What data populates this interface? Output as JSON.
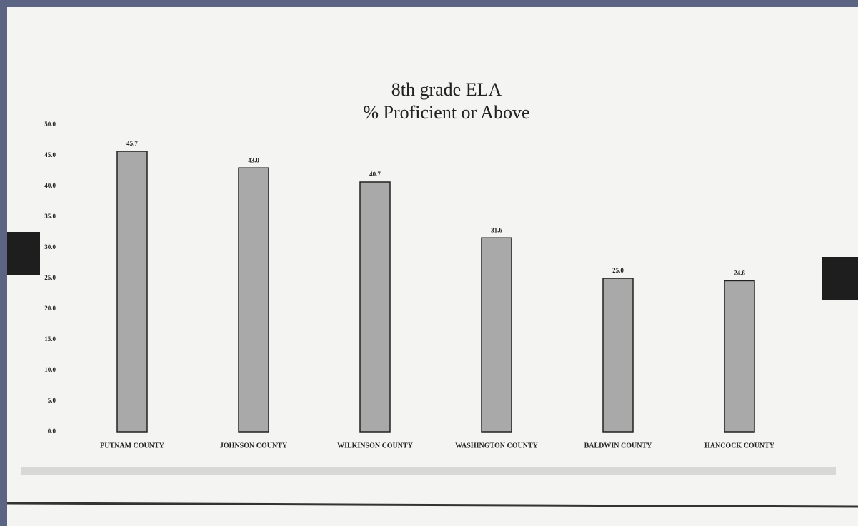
{
  "chart_data": {
    "type": "bar",
    "title": "8th grade ELA",
    "subtitle": "% Proficient or Above",
    "categories": [
      "PUTNAM COUNTY",
      "JOHNSON COUNTY",
      "WILKINSON COUNTY",
      "WASHINGTON COUNTY",
      "BALDWIN COUNTY",
      "HANCOCK COUNTY"
    ],
    "values": [
      45.7,
      43.0,
      40.7,
      31.6,
      25.0,
      24.6
    ],
    "value_labels": [
      "45.7",
      "43.0",
      "40.7",
      "31.6",
      "25.0",
      "24.6"
    ],
    "color": "#a9a9a9",
    "ylim": [
      0,
      50
    ],
    "yticks": [
      {
        "value": 0,
        "label": "0.0"
      },
      {
        "value": 5,
        "label": "5.0"
      },
      {
        "value": 10,
        "label": "10.0"
      },
      {
        "value": 15,
        "label": "15.0"
      },
      {
        "value": 20,
        "label": "20.0"
      },
      {
        "value": 25,
        "label": "25.0"
      },
      {
        "value": 30,
        "label": "30.0"
      },
      {
        "value": 35,
        "label": "35.0"
      },
      {
        "value": 40,
        "label": "40.0"
      },
      {
        "value": 45,
        "label": "45.0"
      },
      {
        "value": 50,
        "label": "50.0"
      }
    ],
    "grid": false
  }
}
